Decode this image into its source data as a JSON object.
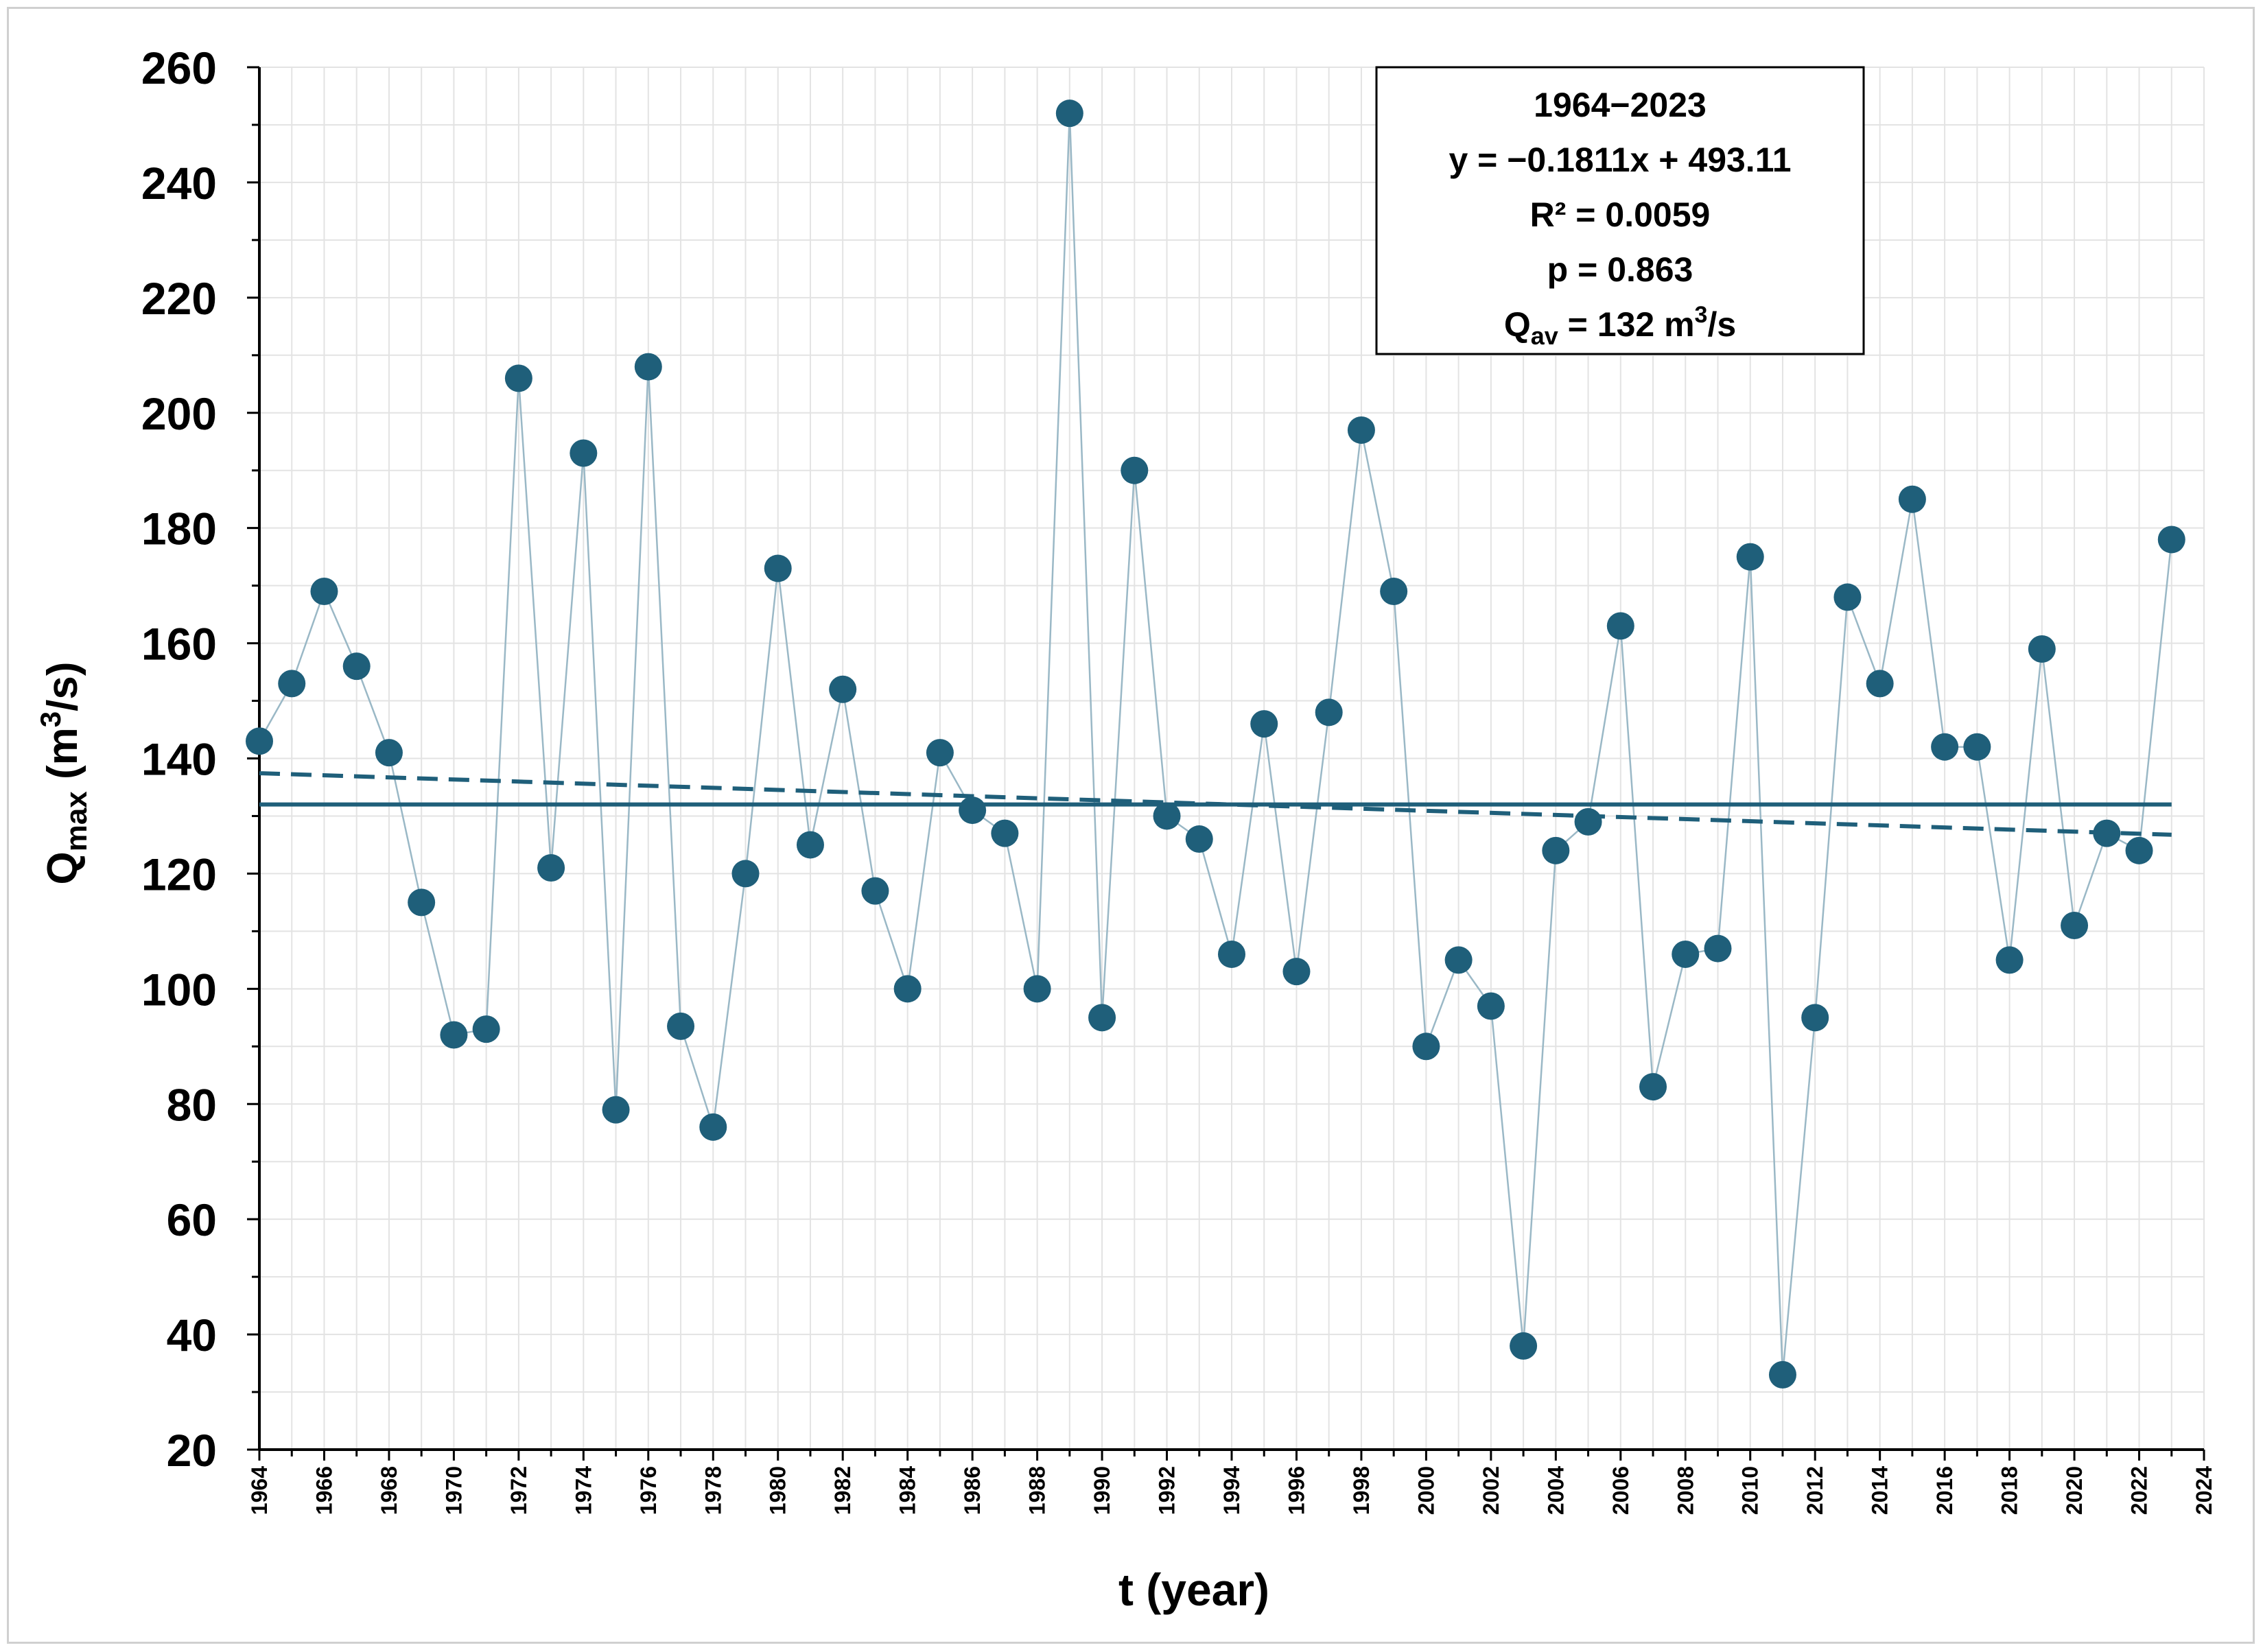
{
  "chart_data": {
    "type": "line",
    "title": "",
    "xlabel": "t (year)",
    "ylabel_main": "Q",
    "ylabel_sub": "max",
    "ylabel_unit": " (m",
    "ylabel_sup": "3",
    "ylabel_end": "/s)",
    "xlim": [
      1964,
      2024
    ],
    "ylim": [
      20,
      260
    ],
    "yticks": [
      20,
      40,
      60,
      80,
      100,
      120,
      140,
      160,
      180,
      200,
      220,
      240,
      260
    ],
    "xticks": [
      1964,
      1966,
      1968,
      1970,
      1972,
      1974,
      1976,
      1978,
      1980,
      1982,
      1984,
      1986,
      1988,
      1990,
      1992,
      1994,
      1996,
      1998,
      2000,
      2002,
      2004,
      2006,
      2008,
      2010,
      2012,
      2014,
      2016,
      2018,
      2020,
      2022,
      2024
    ],
    "series": [
      {
        "name": "Qmax",
        "x": [
          1964,
          1965,
          1966,
          1967,
          1968,
          1969,
          1970,
          1971,
          1972,
          1973,
          1974,
          1975,
          1976,
          1977,
          1978,
          1979,
          1980,
          1981,
          1982,
          1983,
          1984,
          1985,
          1986,
          1987,
          1988,
          1989,
          1990,
          1991,
          1992,
          1993,
          1994,
          1995,
          1996,
          1997,
          1998,
          1999,
          2000,
          2001,
          2002,
          2003,
          2004,
          2005,
          2006,
          2007,
          2008,
          2009,
          2010,
          2011,
          2012,
          2013,
          2014,
          2015,
          2016,
          2017,
          2018,
          2019,
          2020,
          2021,
          2022,
          2023
        ],
        "y": [
          143,
          153,
          169,
          156,
          141,
          115,
          92,
          93,
          206,
          121,
          193,
          79,
          208,
          93.5,
          76,
          120,
          173,
          125,
          152,
          117,
          100,
          141,
          131,
          127,
          100,
          252,
          95,
          190,
          130,
          126,
          106,
          146,
          103,
          148,
          197,
          169,
          90,
          105,
          97,
          38,
          124,
          129,
          163,
          83,
          106,
          107,
          175,
          33,
          95,
          168,
          153,
          185,
          142,
          142,
          105,
          159,
          111,
          127,
          124,
          178
        ]
      }
    ],
    "mean_line": {
      "name": "Qav",
      "value": 132
    },
    "trend_line": {
      "name": "Linear trend",
      "slope": -0.1811,
      "intercept": 493.11
    },
    "annotation": {
      "line1": "1964−2023",
      "line2": "y = −0.1811x + 493.11",
      "line3": "R² = 0.0059",
      "line4": "p = 0.863",
      "line5_main": "Q",
      "line5_sub": "av",
      "line5_mid": " = 132 m",
      "line5_sup": "3",
      "line5_end": "/s"
    },
    "colors": {
      "point": "#1f5f7a",
      "connector": "#9ab8c6",
      "mean": "#1f5f7a",
      "trend": "#1f5f7a",
      "grid": "#e3e3e3",
      "axis": "#000000"
    }
  }
}
